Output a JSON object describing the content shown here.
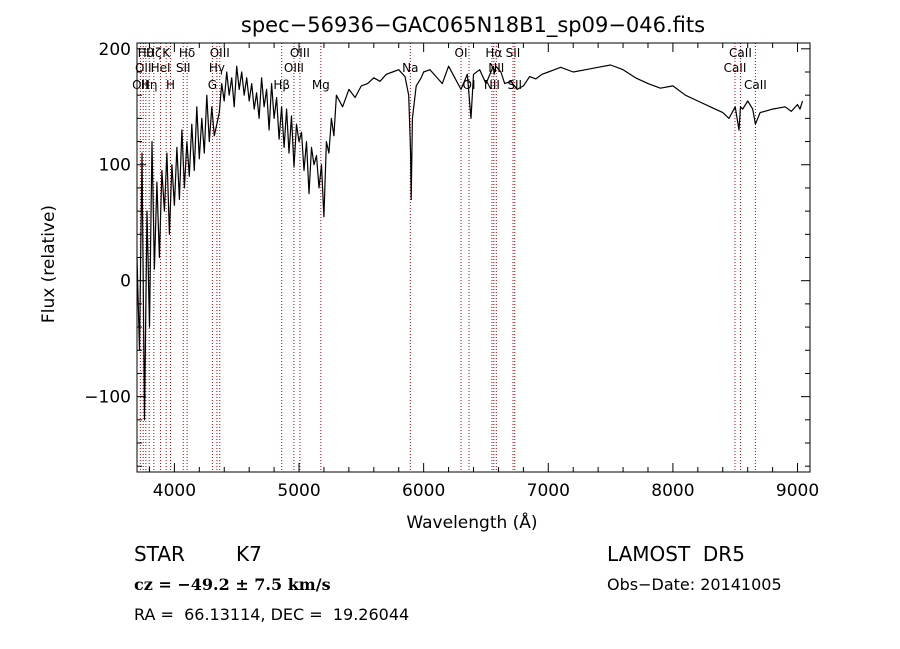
{
  "chart_data": {
    "type": "line",
    "title": "spec−56936−GAC065N18B1_sp09−046.fits",
    "xlabel": "Wavelength (Å)",
    "ylabel": "Flux (relative)",
    "xlim": [
      3700,
      9100
    ],
    "ylim": [
      -165,
      205
    ],
    "xticks": [
      4000,
      5000,
      6000,
      7000,
      8000,
      9000
    ],
    "xtick_labels": [
      "4000",
      "5000",
      "6000",
      "7000",
      "8000",
      "9000"
    ],
    "yticks": [
      -100,
      0,
      100,
      200
    ],
    "ytick_labels": [
      "−100",
      "0",
      "100",
      "200"
    ],
    "grid": false,
    "series": [
      {
        "x": [
          3700,
          3720,
          3740,
          3760,
          3780,
          3800,
          3820,
          3840,
          3860,
          3880,
          3900,
          3920,
          3940,
          3960,
          3980,
          4000,
          4020,
          4040,
          4060,
          4080,
          4100,
          4120,
          4140,
          4160,
          4180,
          4200,
          4220,
          4240,
          4260,
          4280,
          4300,
          4320,
          4340,
          4360,
          4380,
          4400,
          4420,
          4440,
          4460,
          4480,
          4500,
          4520,
          4540,
          4560,
          4580,
          4600,
          4620,
          4640,
          4660,
          4680,
          4700,
          4720,
          4740,
          4760,
          4780,
          4800,
          4820,
          4840,
          4860,
          4880,
          4900,
          4920,
          4940,
          4960,
          4980,
          5000,
          5020,
          5040,
          5060,
          5080,
          5100,
          5120,
          5140,
          5160,
          5180,
          5200,
          5220,
          5240,
          5260,
          5280,
          5300,
          5350,
          5400,
          5450,
          5500,
          5550,
          5600,
          5650,
          5700,
          5750,
          5800,
          5850,
          5880,
          5895,
          5900,
          5910,
          5940,
          5980,
          6000,
          6050,
          6100,
          6150,
          6200,
          6250,
          6300,
          6350,
          6380,
          6400,
          6450,
          6500,
          6540,
          6560,
          6565,
          6580,
          6620,
          6650,
          6700,
          6750,
          6800,
          6850,
          6900,
          6950,
          7000,
          7050,
          7100,
          7200,
          7300,
          7400,
          7500,
          7600,
          7700,
          7800,
          7900,
          8000,
          8100,
          8200,
          8300,
          8400,
          8450,
          8500,
          8530,
          8542,
          8560,
          8600,
          8640,
          8662,
          8700,
          8800,
          8900,
          8950,
          9000,
          9020,
          9040
        ],
        "y": [
          20,
          -60,
          110,
          -120,
          60,
          -40,
          120,
          10,
          85,
          20,
          95,
          60,
          110,
          40,
          100,
          65,
          115,
          70,
          130,
          80,
          120,
          90,
          135,
          95,
          150,
          105,
          140,
          110,
          160,
          120,
          150,
          125,
          135,
          145,
          170,
          155,
          180,
          160,
          175,
          150,
          185,
          165,
          180,
          160,
          175,
          155,
          170,
          148,
          162,
          140,
          175,
          150,
          165,
          130,
          170,
          140,
          158,
          122,
          150,
          115,
          148,
          110,
          142,
          98,
          135,
          120,
          128,
          95,
          120,
          75,
          115,
          100,
          108,
          80,
          100,
          55,
          120,
          110,
          140,
          125,
          160,
          150,
          165,
          158,
          168,
          170,
          175,
          172,
          178,
          180,
          182,
          176,
          160,
          110,
          70,
          140,
          168,
          175,
          180,
          182,
          176,
          170,
          185,
          175,
          165,
          178,
          140,
          178,
          182,
          170,
          180,
          185,
          178,
          185,
          180,
          170,
          172,
          165,
          168,
          176,
          174,
          178,
          180,
          182,
          184,
          180,
          182,
          184,
          186,
          182,
          175,
          170,
          166,
          168,
          160,
          155,
          150,
          145,
          140,
          150,
          130,
          150,
          148,
          155,
          148,
          135,
          145,
          148,
          150,
          146,
          152,
          148,
          155
        ]
      }
    ],
    "line_markers": [
      {
        "x": 3727,
        "label": "OII",
        "row": 2
      },
      {
        "x": 3750,
        "label": "OII",
        "row": 1
      },
      {
        "x": 3771,
        "label": "Hθ",
        "row": 0
      },
      {
        "x": 3798,
        "label": "Hη",
        "row": 2
      },
      {
        "x": 3835,
        "label": "Hζ",
        "row": 0
      },
      {
        "x": 3889,
        "label": "HeI",
        "row": 1
      },
      {
        "x": 3934,
        "label": "K",
        "row": 0
      },
      {
        "x": 3969,
        "label": "H",
        "row": 2
      },
      {
        "x": 4071,
        "label": "SII",
        "row": 1
      },
      {
        "x": 4102,
        "label": "Hδ",
        "row": 0
      },
      {
        "x": 4305,
        "label": "G",
        "row": 2
      },
      {
        "x": 4341,
        "label": "Hγ",
        "row": 1
      },
      {
        "x": 4364,
        "label": "OIII",
        "row": 0
      },
      {
        "x": 4861,
        "label": "Hβ",
        "row": 2
      },
      {
        "x": 4959,
        "label": "OIII",
        "row": 1
      },
      {
        "x": 5007,
        "label": "OIII",
        "row": 0
      },
      {
        "x": 5175,
        "label": "Mg",
        "row": 2
      },
      {
        "x": 5893,
        "label": "Na",
        "row": 1
      },
      {
        "x": 6300,
        "label": "OI",
        "row": 0
      },
      {
        "x": 6364,
        "label": "OI",
        "row": 2
      },
      {
        "x": 6548,
        "label": "NII",
        "row": 2
      },
      {
        "x": 6563,
        "label": "Hα",
        "row": 0
      },
      {
        "x": 6583,
        "label": "NII",
        "row": 1
      },
      {
        "x": 6717,
        "label": "SII",
        "row": 0
      },
      {
        "x": 6731,
        "label": "SII",
        "row": 2
      },
      {
        "x": 8498,
        "label": "CaII",
        "row": 1
      },
      {
        "x": 8542,
        "label": "CaII",
        "row": 0
      },
      {
        "x": 8662,
        "label": "CaII",
        "row": 2
      }
    ]
  },
  "info": {
    "object_class": "STAR",
    "subclass": "K7",
    "redshift": "cz = −49.2 ± 7.5 km/s",
    "coords": "RA =  66.13114, DEC =  19.26044",
    "survey": "LAMOST  DR5",
    "obs_date": "Obs−Date: 20141005"
  }
}
